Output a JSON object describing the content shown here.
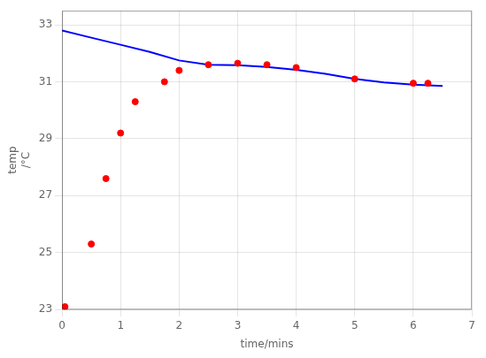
{
  "chart_data": {
    "type": "scatter",
    "xlabel": "time/mins",
    "ylabel": [
      "temp",
      "/°C"
    ],
    "xlim": [
      0,
      7
    ],
    "ylim": [
      23,
      33.5
    ],
    "xticks": [
      0,
      1,
      2,
      3,
      4,
      5,
      6,
      7
    ],
    "yticks": [
      23,
      25,
      27,
      29,
      31,
      33
    ],
    "grid": true,
    "series": [
      {
        "type": "scatter",
        "color": "#ff0000",
        "marker": "circle",
        "x": [
          0.05,
          0.5,
          0.75,
          1.0,
          1.25,
          1.75,
          2.0,
          2.5,
          3.0,
          3.5,
          4.0,
          5.0,
          6.0,
          6.25
        ],
        "values": [
          23.1,
          25.3,
          27.6,
          29.2,
          30.3,
          31.0,
          31.4,
          31.6,
          31.65,
          31.6,
          31.5,
          31.1,
          30.95,
          30.95
        ]
      },
      {
        "type": "line",
        "color": "#0000ff",
        "line_style": "solid",
        "x": [
          0.0,
          0.5,
          1.0,
          1.5,
          2.0,
          2.5,
          3.0,
          3.5,
          4.0,
          4.5,
          5.0,
          5.5,
          6.0,
          6.5
        ],
        "values": [
          32.8,
          32.55,
          32.3,
          32.05,
          31.75,
          31.6,
          31.58,
          31.52,
          31.42,
          31.28,
          31.1,
          30.98,
          30.9,
          30.85
        ]
      }
    ]
  }
}
